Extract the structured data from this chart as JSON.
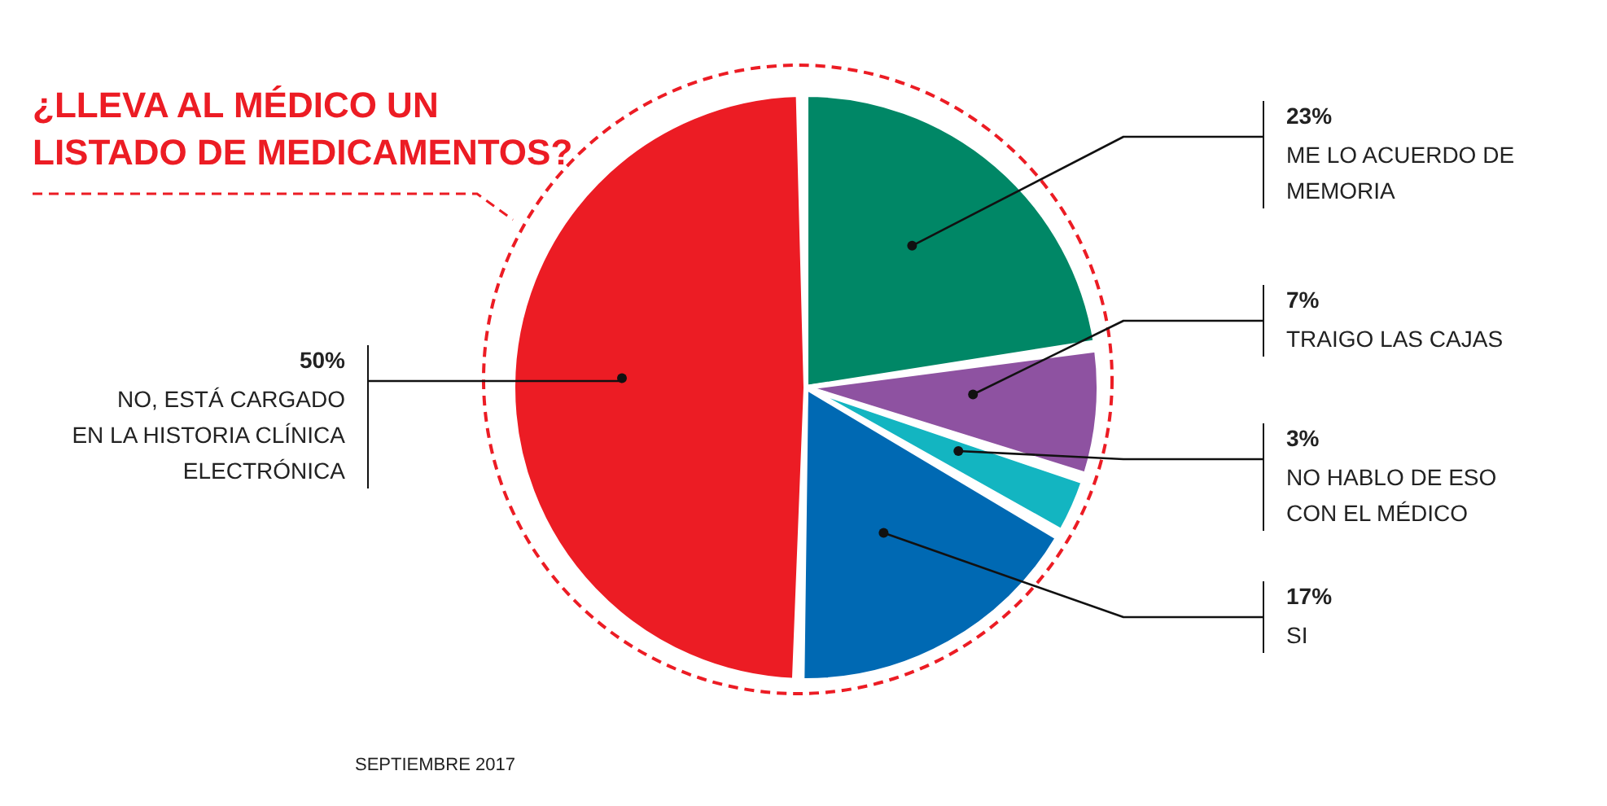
{
  "chart_data": {
    "type": "pie",
    "title": "¿LLEVA AL MÉDICO UN\nLISTADO DE MEDICAMENTOS?",
    "categories": [
      "ME LO ACUERDO DE\nMEMORIA",
      "TRAIGO LAS CAJAS",
      "NO HABLO DE ESO\nCON EL MÉDICO",
      "SI",
      "NO, ESTÁ CARGADO\nEN LA HISTORIA CLÍNICA\nELECTRÓNICA"
    ],
    "values": [
      23,
      7,
      3,
      17,
      50
    ],
    "colors": [
      "#008766",
      "#8e52a1",
      "#13b5c1",
      "#0069b3",
      "#ec1c24"
    ],
    "value_labels": [
      "23%",
      "7%",
      "3%",
      "17%",
      "50%"
    ],
    "annotations": [
      "SEPTIEMBRE 2017"
    ]
  }
}
